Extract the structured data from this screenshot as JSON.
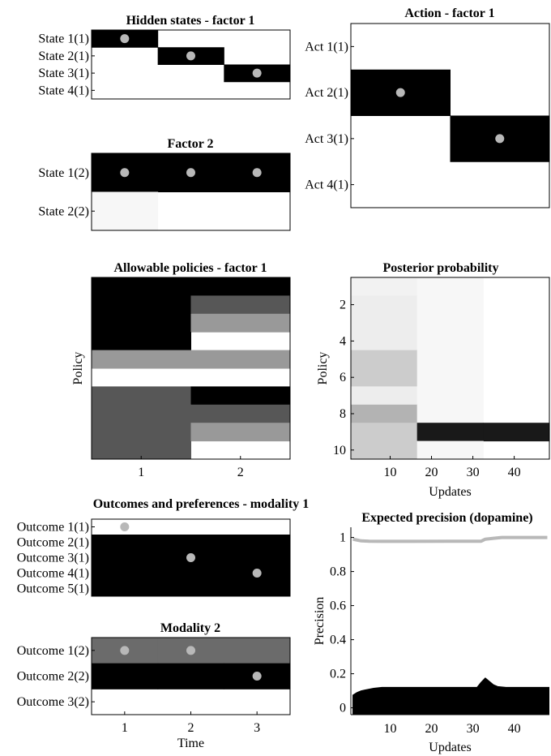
{
  "figure": {
    "colors": {
      "gray_dot": "#b8b8b8",
      "black": "#000000",
      "white": "#ffffff"
    }
  },
  "chart_data": [
    {
      "type": "heatmap",
      "title": "Hidden states - factor 1",
      "ylabels": [
        "State 1(1)",
        "State 2(1)",
        "State 3(1)",
        "State 4(1)"
      ],
      "cols": 3,
      "cells": [
        [
          1,
          0,
          0
        ],
        [
          0,
          1,
          0
        ],
        [
          0,
          0,
          1
        ],
        [
          0,
          0,
          0
        ]
      ],
      "dots": [
        [
          0,
          0
        ],
        [
          1,
          1
        ],
        [
          2,
          2
        ]
      ]
    },
    {
      "type": "heatmap",
      "title": "Factor 2",
      "ylabels": [
        "State 1(2)",
        "State 2(2)"
      ],
      "cols": 3,
      "cells": [
        [
          1,
          1,
          1
        ],
        [
          0.03,
          0,
          0
        ]
      ],
      "dots": [
        [
          0,
          0
        ],
        [
          0,
          1
        ],
        [
          0,
          2
        ]
      ]
    },
    {
      "type": "heatmap",
      "title": "Action - factor 1",
      "ylabels": [
        "Act 1(1)",
        "Act 2(1)",
        "Act 3(1)",
        "Act 4(1)"
      ],
      "cols": 2,
      "cells": [
        [
          0,
          0
        ],
        [
          1,
          0
        ],
        [
          0,
          1
        ],
        [
          0,
          0
        ]
      ],
      "dots": [
        [
          1,
          0
        ],
        [
          2,
          1
        ]
      ]
    },
    {
      "type": "heatmap",
      "title": "Allowable policies - factor 1",
      "ylabel": "Policy",
      "xticks": [
        "1",
        "2"
      ],
      "cols": 2,
      "cells": [
        [
          1,
          1
        ],
        [
          1,
          0.66
        ],
        [
          1,
          0.4
        ],
        [
          1,
          0
        ],
        [
          0.4,
          0.4
        ],
        [
          0,
          0
        ],
        [
          0.66,
          1
        ],
        [
          0.66,
          0.66
        ],
        [
          0.66,
          0.4
        ],
        [
          0.66,
          0
        ]
      ]
    },
    {
      "type": "heatmap",
      "title": "Posterior probability",
      "xlabel": "Updates",
      "ylabel": "Policy",
      "xticks": [
        10,
        20,
        30,
        40
      ],
      "yticks": [
        2,
        4,
        6,
        8,
        10
      ],
      "xlim": [
        0.5,
        48.5
      ],
      "ylim": [
        0.5,
        10.5
      ],
      "col_edges": [
        0.5,
        16.5,
        32.5,
        48.5
      ],
      "cells": [
        [
          0.05,
          0.03,
          0
        ],
        [
          0.07,
          0.03,
          0
        ],
        [
          0.07,
          0.03,
          0
        ],
        [
          0.07,
          0.03,
          0
        ],
        [
          0.2,
          0.03,
          0
        ],
        [
          0.2,
          0.03,
          0
        ],
        [
          0.07,
          0.03,
          0
        ],
        [
          0.3,
          0.03,
          0
        ],
        [
          0.2,
          0.9,
          0.9
        ],
        [
          0.2,
          0.03,
          0
        ]
      ]
    },
    {
      "type": "heatmap",
      "title": "Outcomes and preferences - modality 1",
      "ylabels": [
        "Outcome 1(1)",
        "Outcome 2(1)",
        "Outcome 3(1)",
        "Outcome 4(1)",
        "Outcome 5(1)"
      ],
      "cols": 3,
      "cells": [
        [
          0,
          0,
          0
        ],
        [
          1,
          1,
          1
        ],
        [
          1,
          1,
          1
        ],
        [
          1,
          1,
          1
        ],
        [
          1,
          1,
          1
        ]
      ],
      "dots": [
        [
          0,
          0
        ],
        [
          2,
          1
        ],
        [
          3,
          2
        ]
      ]
    },
    {
      "type": "heatmap",
      "title": "Modality 2",
      "xlabel": "Time",
      "xticks": [
        "1",
        "2",
        "3"
      ],
      "ylabels": [
        "Outcome 1(2)",
        "Outcome 2(2)",
        "Outcome 3(2)"
      ],
      "cols": 3,
      "cells": [
        [
          0.58,
          0.58,
          0.58
        ],
        [
          1,
          1,
          1
        ],
        [
          0,
          0,
          0
        ]
      ],
      "dots": [
        [
          0,
          0
        ],
        [
          0,
          1
        ],
        [
          1,
          2
        ]
      ]
    },
    {
      "type": "area",
      "title": "Expected precision (dopamine)",
      "xlabel": "Updates",
      "ylabel": "Precision",
      "xticks": [
        10,
        20,
        30,
        40
      ],
      "yticks": [
        "0",
        "0.2",
        "0.4",
        "0.6",
        "0.8",
        "1"
      ],
      "xlim": [
        0.5,
        48.5
      ],
      "ylim": [
        -0.04,
        1.06
      ],
      "series": [
        {
          "color": "#b8b8b8",
          "x": [
            1,
            2,
            3,
            5,
            8,
            15,
            25,
            31,
            32,
            33,
            35,
            37,
            40,
            48
          ],
          "y": [
            0.99,
            0.985,
            0.98,
            0.978,
            0.977,
            0.977,
            0.978,
            0.978,
            0.978,
            0.99,
            0.995,
            1.0,
            1.0,
            1.0
          ]
        },
        {
          "color": "#000000",
          "fill": true,
          "x": [
            1,
            2,
            3,
            4,
            5,
            6,
            8,
            15,
            25,
            31,
            32,
            33,
            34,
            35,
            36,
            38,
            40,
            48
          ],
          "y": [
            0.075,
            0.09,
            0.1,
            0.105,
            0.11,
            0.115,
            0.12,
            0.12,
            0.12,
            0.12,
            0.15,
            0.175,
            0.155,
            0.135,
            0.125,
            0.12,
            0.12,
            0.12
          ]
        }
      ]
    }
  ]
}
